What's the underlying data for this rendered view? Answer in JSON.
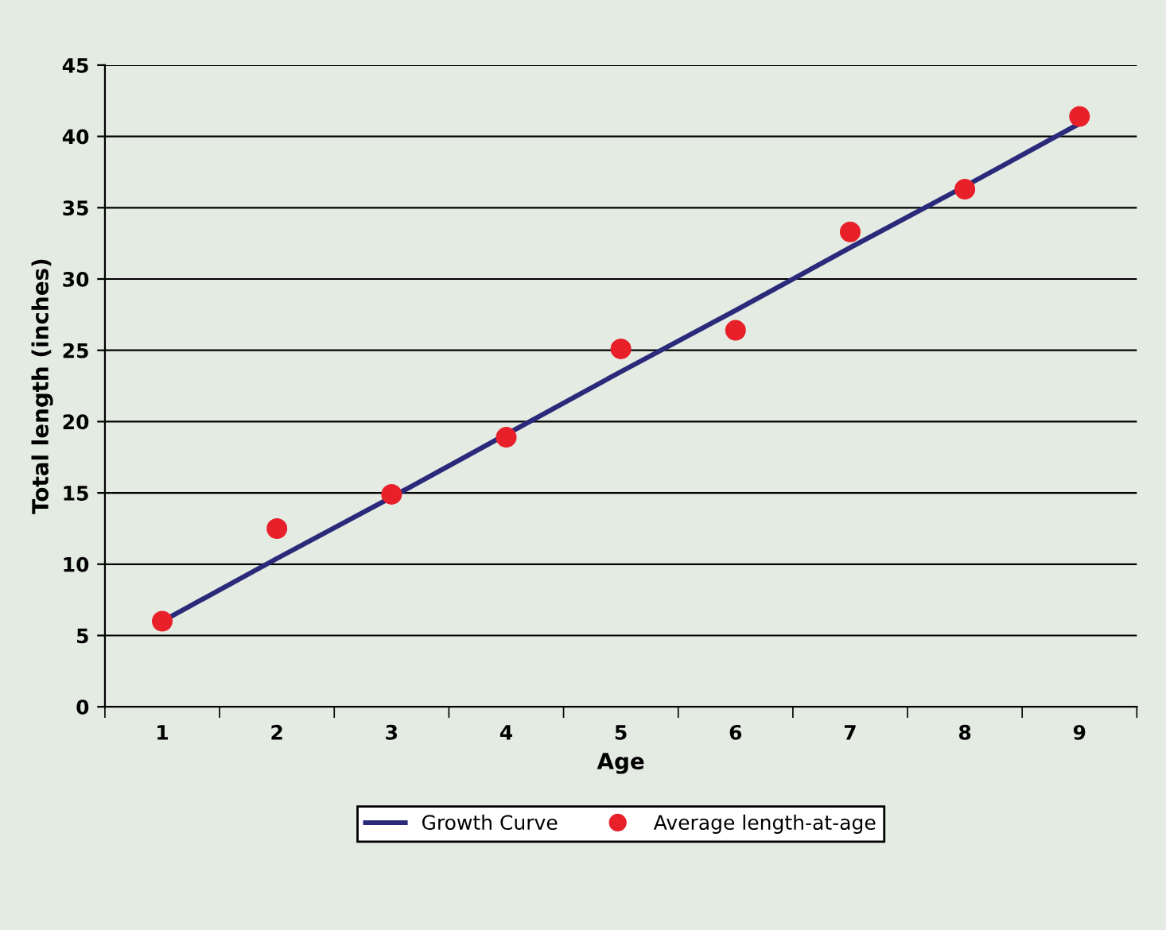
{
  "chart_data": {
    "type": "scatter",
    "xlabel": "Age",
    "ylabel": "Total length (inches)",
    "categories": [
      "1",
      "2",
      "3",
      "4",
      "5",
      "6",
      "7",
      "8",
      "9"
    ],
    "series": [
      {
        "name": "Growth Curve",
        "type": "line",
        "color": "#2b2a7a",
        "marker": "none",
        "values": [
          6.0,
          10.4,
          14.7,
          19.1,
          23.5,
          27.8,
          32.2,
          36.5,
          40.9
        ]
      },
      {
        "name": "Average length-at-age",
        "color": "#e8202a",
        "marker": "circle",
        "values": [
          6.0,
          12.5,
          14.9,
          18.9,
          25.1,
          26.4,
          33.3,
          36.3,
          41.4
        ]
      }
    ],
    "ylim": [
      0,
      45
    ],
    "yticks": [
      0,
      5,
      10,
      15,
      20,
      25,
      30,
      35,
      40,
      45
    ],
    "grid": "y",
    "legend": "bottom"
  }
}
